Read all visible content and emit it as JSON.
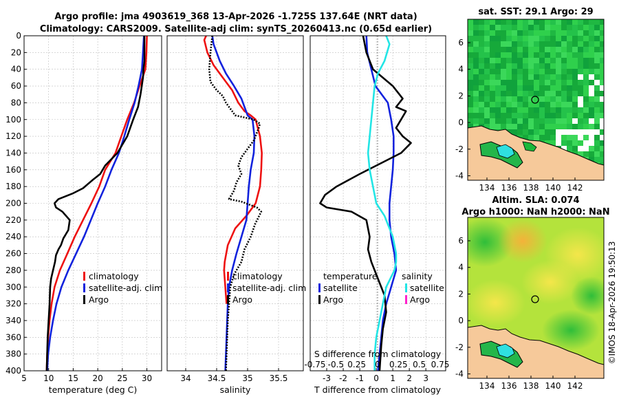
{
  "titles": {
    "line1": "Argo profile: jma 4903619_368 13-Apr-2026 -1.725S 137.64E (NRT data)",
    "line2": "Climatology: CARS2009. Satellite-adj clim: synTS_20260413.nc (0.65d earlier)",
    "sst_map": "sat. SST: 29.1 Argo: 29",
    "sla_map_line1": "Altim. SLA: 0.074",
    "sla_map_line2": "Argo h1000: NaN h2000: NaN",
    "credit": "©IMOS 18-Apr-2026 19:50:13"
  },
  "legend": {
    "temperature_panel": [
      "climatology",
      "satellite-adj. clim",
      "Argo"
    ],
    "salinity_panel": [
      "climatology",
      "satellite-adj. clim",
      "Argo"
    ],
    "diff_panel_temp_heading": "temperature",
    "diff_panel_sal_heading": "salinity",
    "diff_panel_temp": [
      "satellite",
      "Argo"
    ],
    "diff_panel_sal": [
      "satellite",
      "Argo"
    ]
  },
  "colors": {
    "climatology": "#ee1111",
    "satellite": "#1122dd",
    "argo": "#000000",
    "sal_satellite": "#22e5e5",
    "sal_argo": "#ff22cc",
    "land": "#f6c99a"
  },
  "chart_data": [
    {
      "type": "line",
      "title": "",
      "xlabel": "temperature (deg C)",
      "ylabel": "",
      "xlim": [
        5,
        33
      ],
      "ylim": [
        400,
        0
      ],
      "xticks": [
        "5",
        "10",
        "15",
        "20",
        "25",
        "30"
      ],
      "yticks": [
        "0",
        "20",
        "40",
        "60",
        "80",
        "100",
        "120",
        "140",
        "160",
        "180",
        "200",
        "220",
        "240",
        "260",
        "280",
        "300",
        "320",
        "340",
        "360",
        "380",
        "400"
      ],
      "series": [
        {
          "name": "climatology",
          "color": "#ee1111",
          "dash": "",
          "points": [
            [
              30,
              0
            ],
            [
              29.9,
              20
            ],
            [
              29.7,
              40
            ],
            [
              28.5,
              60
            ],
            [
              27.4,
              80
            ],
            [
              26,
              100
            ],
            [
              24.8,
              120
            ],
            [
              23.6,
              140
            ],
            [
              21.5,
              160
            ],
            [
              20.3,
              180
            ],
            [
              18.7,
              200
            ],
            [
              17,
              220
            ],
            [
              15.3,
              240
            ],
            [
              13.8,
              260
            ],
            [
              12.3,
              280
            ],
            [
              11.2,
              300
            ],
            [
              10.6,
              320
            ],
            [
              10.2,
              340
            ],
            [
              9.9,
              360
            ],
            [
              9.7,
              380
            ],
            [
              9.6,
              400
            ]
          ]
        },
        {
          "name": "satellite-adj. clim",
          "color": "#1122dd",
          "dash": "",
          "points": [
            [
              29.4,
              0
            ],
            [
              29.2,
              20
            ],
            [
              29,
              40
            ],
            [
              28.3,
              60
            ],
            [
              27.5,
              80
            ],
            [
              26.4,
              100
            ],
            [
              25.4,
              120
            ],
            [
              24.3,
              140
            ],
            [
              22.8,
              160
            ],
            [
              21.5,
              180
            ],
            [
              20,
              200
            ],
            [
              18.6,
              220
            ],
            [
              17.2,
              240
            ],
            [
              15.6,
              260
            ],
            [
              14,
              280
            ],
            [
              12.6,
              300
            ],
            [
              11.6,
              320
            ],
            [
              10.9,
              340
            ],
            [
              10.3,
              360
            ],
            [
              9.9,
              380
            ],
            [
              9.7,
              400
            ]
          ]
        },
        {
          "name": "Argo",
          "color": "#000000",
          "dash": "",
          "points": [
            [
              29.5,
              0
            ],
            [
              29.5,
              30
            ],
            [
              29.3,
              40
            ],
            [
              29.2,
              50
            ],
            [
              28.7,
              70
            ],
            [
              28.2,
              85
            ],
            [
              27.2,
              100
            ],
            [
              26,
              120
            ],
            [
              24,
              140
            ],
            [
              21.5,
              155
            ],
            [
              20.5,
              165
            ],
            [
              19,
              172
            ],
            [
              17,
              182
            ],
            [
              15,
              188
            ],
            [
              12,
              195
            ],
            [
              11.2,
              200
            ],
            [
              11.5,
              205
            ],
            [
              12.8,
              210
            ],
            [
              14.3,
              220
            ],
            [
              14,
              232
            ],
            [
              13,
              242
            ],
            [
              12.5,
              250
            ],
            [
              12,
              255
            ],
            [
              11.5,
              262
            ],
            [
              11.3,
              270
            ],
            [
              10.9,
              280
            ],
            [
              10.5,
              290
            ],
            [
              10.3,
              300
            ],
            [
              10.2,
              320
            ],
            [
              10,
              340
            ],
            [
              9.8,
              360
            ],
            [
              9.7,
              380
            ],
            [
              9.6,
              400
            ]
          ]
        }
      ]
    },
    {
      "type": "line",
      "title": "",
      "xlabel": "salinity",
      "ylabel": "",
      "xlim": [
        33.7,
        35.9
      ],
      "ylim": [
        400,
        0
      ],
      "xticks": [
        "34",
        "34.5",
        "35",
        "35.5"
      ],
      "series": [
        {
          "name": "climatology",
          "color": "#ee1111",
          "dash": "",
          "points": [
            [
              34.33,
              0
            ],
            [
              34.3,
              5
            ],
            [
              34.35,
              20
            ],
            [
              34.45,
              35
            ],
            [
              34.55,
              45
            ],
            [
              34.65,
              55
            ],
            [
              34.75,
              65
            ],
            [
              34.85,
              80
            ],
            [
              34.95,
              90
            ],
            [
              35.05,
              95
            ],
            [
              35.13,
              100
            ],
            [
              35.2,
              120
            ],
            [
              35.23,
              140
            ],
            [
              35.22,
              160
            ],
            [
              35.2,
              180
            ],
            [
              35.13,
              200
            ],
            [
              34.98,
              215
            ],
            [
              34.8,
              230
            ],
            [
              34.68,
              250
            ],
            [
              34.63,
              270
            ],
            [
              34.62,
              280
            ],
            [
              34.64,
              300
            ],
            [
              34.66,
              320
            ]
          ]
        },
        {
          "name": "satellite-adj. clim",
          "color": "#1122dd",
          "dash": "",
          "points": [
            [
              34.43,
              0
            ],
            [
              34.45,
              10
            ],
            [
              34.5,
              20
            ],
            [
              34.55,
              30
            ],
            [
              34.65,
              45
            ],
            [
              34.78,
              60
            ],
            [
              34.9,
              75
            ],
            [
              35,
              95
            ],
            [
              35.08,
              100
            ],
            [
              35.11,
              120
            ],
            [
              35.1,
              140
            ],
            [
              35.05,
              160
            ],
            [
              35.02,
              180
            ],
            [
              35,
              200
            ],
            [
              34.98,
              220
            ],
            [
              34.9,
              240
            ],
            [
              34.82,
              260
            ],
            [
              34.75,
              280
            ],
            [
              34.7,
              300
            ],
            [
              34.68,
              320
            ],
            [
              34.67,
              340
            ],
            [
              34.66,
              360
            ],
            [
              34.65,
              380
            ],
            [
              34.64,
              400
            ]
          ]
        },
        {
          "name": "Argo",
          "color": "#000000",
          "dash": "2,2",
          "points": [
            [
              34.43,
              0
            ],
            [
              34.4,
              20
            ],
            [
              34.38,
              40
            ],
            [
              34.4,
              55
            ],
            [
              34.5,
              65
            ],
            [
              34.6,
              72
            ],
            [
              34.65,
              80
            ],
            [
              34.8,
              95
            ],
            [
              35.1,
              100
            ],
            [
              35.2,
              105
            ],
            [
              35.18,
              110
            ],
            [
              35.1,
              125
            ],
            [
              34.9,
              145
            ],
            [
              34.85,
              155
            ],
            [
              34.9,
              165
            ],
            [
              34.82,
              175
            ],
            [
              34.78,
              185
            ],
            [
              34.7,
              195
            ],
            [
              34.9,
              198
            ],
            [
              35.15,
              205
            ],
            [
              35.22,
              210
            ],
            [
              35.12,
              225
            ],
            [
              35.05,
              240
            ],
            [
              34.95,
              255
            ],
            [
              34.9,
              270
            ],
            [
              34.78,
              285
            ],
            [
              34.72,
              300
            ],
            [
              34.7,
              320
            ],
            [
              34.68,
              340
            ],
            [
              34.67,
              360
            ],
            [
              34.66,
              380
            ],
            [
              34.65,
              400
            ]
          ]
        }
      ]
    },
    {
      "type": "line",
      "title": "",
      "xlabel": "T difference from climatology",
      "ylabel": "",
      "secondary_xlabel": "S difference from climatology",
      "secondary_ticks": [
        "-0.75",
        "-0.5",
        "0.25",
        "0",
        "0.25",
        "0.5",
        "0.75"
      ],
      "xlim": [
        -4,
        4.2
      ],
      "ylim": [
        400,
        0
      ],
      "xticks": [
        "-3",
        "-2",
        "-1",
        "0",
        "1",
        "2",
        "3"
      ],
      "series": [
        {
          "name": "temperature satellite",
          "color": "#1122dd",
          "dash": "",
          "points": [
            [
              -0.6,
              0
            ],
            [
              -0.55,
              20
            ],
            [
              -0.3,
              40
            ],
            [
              -0.05,
              60
            ],
            [
              0.7,
              80
            ],
            [
              0.9,
              100
            ],
            [
              1.05,
              120
            ],
            [
              1.05,
              140
            ],
            [
              1.0,
              160
            ],
            [
              0.9,
              180
            ],
            [
              0.8,
              200
            ],
            [
              0.8,
              220
            ],
            [
              0.9,
              240
            ],
            [
              1.1,
              260
            ],
            [
              1.2,
              280
            ],
            [
              0.9,
              300
            ],
            [
              0.6,
              320
            ],
            [
              0.4,
              340
            ],
            [
              0.3,
              360
            ],
            [
              0.2,
              380
            ],
            [
              0.1,
              400
            ]
          ]
        },
        {
          "name": "temperature Argo",
          "color": "#000000",
          "dash": "",
          "points": [
            [
              -0.8,
              0
            ],
            [
              -0.6,
              20
            ],
            [
              -0.2,
              40
            ],
            [
              0.4,
              50
            ],
            [
              1.0,
              60
            ],
            [
              1.6,
              75
            ],
            [
              1.2,
              85
            ],
            [
              1.8,
              90
            ],
            [
              1.5,
              100
            ],
            [
              1.2,
              110
            ],
            [
              1.6,
              120
            ],
            [
              2.1,
              128
            ],
            [
              1.5,
              140
            ],
            [
              0.5,
              150
            ],
            [
              -1,
              165
            ],
            [
              -2.4,
              180
            ],
            [
              -3.1,
              190
            ],
            [
              -3.4,
              200
            ],
            [
              -3,
              205
            ],
            [
              -1.5,
              210
            ],
            [
              -0.6,
              220
            ],
            [
              -0.4,
              240
            ],
            [
              -0.5,
              255
            ],
            [
              -0.3,
              270
            ],
            [
              0.1,
              290
            ],
            [
              0.5,
              310
            ],
            [
              0.6,
              330
            ],
            [
              0.4,
              350
            ],
            [
              0.3,
              370
            ],
            [
              0.2,
              400
            ]
          ]
        },
        {
          "name": "salinity satellite",
          "color": "#22e5e5",
          "dash": "",
          "points": [
            [
              0.6,
              0
            ],
            [
              0.8,
              10
            ],
            [
              0.5,
              30
            ],
            [
              0.1,
              45
            ],
            [
              -0.1,
              60
            ],
            [
              -0.2,
              80
            ],
            [
              -0.3,
              100
            ],
            [
              -0.4,
              120
            ],
            [
              -0.5,
              140
            ],
            [
              -0.4,
              160
            ],
            [
              -0.2,
              180
            ],
            [
              0.0,
              200
            ],
            [
              0.5,
              215
            ],
            [
              1.0,
              240
            ],
            [
              1.1,
              250
            ],
            [
              1.2,
              260
            ],
            [
              1.2,
              270
            ],
            [
              1.1,
              280
            ],
            [
              0.6,
              300
            ],
            [
              0.4,
              320
            ],
            [
              0.2,
              340
            ],
            [
              0.0,
              360
            ],
            [
              -0.1,
              380
            ],
            [
              -0.1,
              400
            ]
          ]
        },
        {
          "name": "salinity Argo",
          "color": "#ff22cc",
          "dash": "",
          "points": []
        }
      ]
    }
  ],
  "maps": {
    "sst": {
      "xticks": [
        "134",
        "136",
        "138",
        "140",
        "142"
      ],
      "yticks": [
        "6",
        "4",
        "2",
        "0",
        "-2",
        "-4"
      ]
    },
    "sla": {
      "xticks": [
        "134",
        "136",
        "138",
        "140",
        "142"
      ],
      "yticks": [
        "6",
        "4",
        "2",
        "0",
        "-2",
        "-4"
      ]
    }
  }
}
